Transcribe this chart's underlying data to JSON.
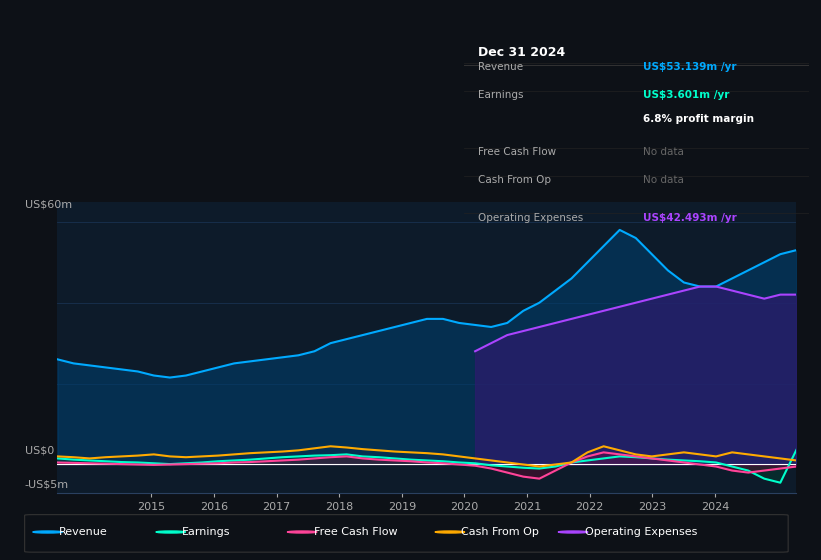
{
  "bg_color": "#0d1117",
  "plot_bg_color": "#0d1b2a",
  "grid_color": "#1e2d3d",
  "title_text": "Dec 31 2024",
  "tooltip": {
    "Revenue": "US$53.139m /yr",
    "Earnings": "US$3.601m /yr",
    "profit_margin": "6.8% profit margin",
    "Free Cash Flow": "No data",
    "Cash From Op": "No data",
    "Operating Expenses": "US$42.493m /yr"
  },
  "ylabel_top": "US$60m",
  "ylabel_zero": "US$0",
  "ylabel_neg": "-US$5m",
  "legend": [
    {
      "label": "Revenue",
      "color": "#00aaff"
    },
    {
      "label": "Earnings",
      "color": "#00ffcc"
    },
    {
      "label": "Free Cash Flow",
      "color": "#ff4499"
    },
    {
      "label": "Cash From Op",
      "color": "#ffaa00"
    },
    {
      "label": "Operating Expenses",
      "color": "#aa44ff"
    }
  ],
  "revenue_color": "#00aaff",
  "earnings_color": "#00ffcc",
  "fcf_color": "#ff4499",
  "cashfromop_color": "#ffaa00",
  "opex_color": "#aa44ff",
  "revenue_fill": "#003366",
  "earnings_fill": "#006644",
  "opex_fill": "#2d1b6e"
}
